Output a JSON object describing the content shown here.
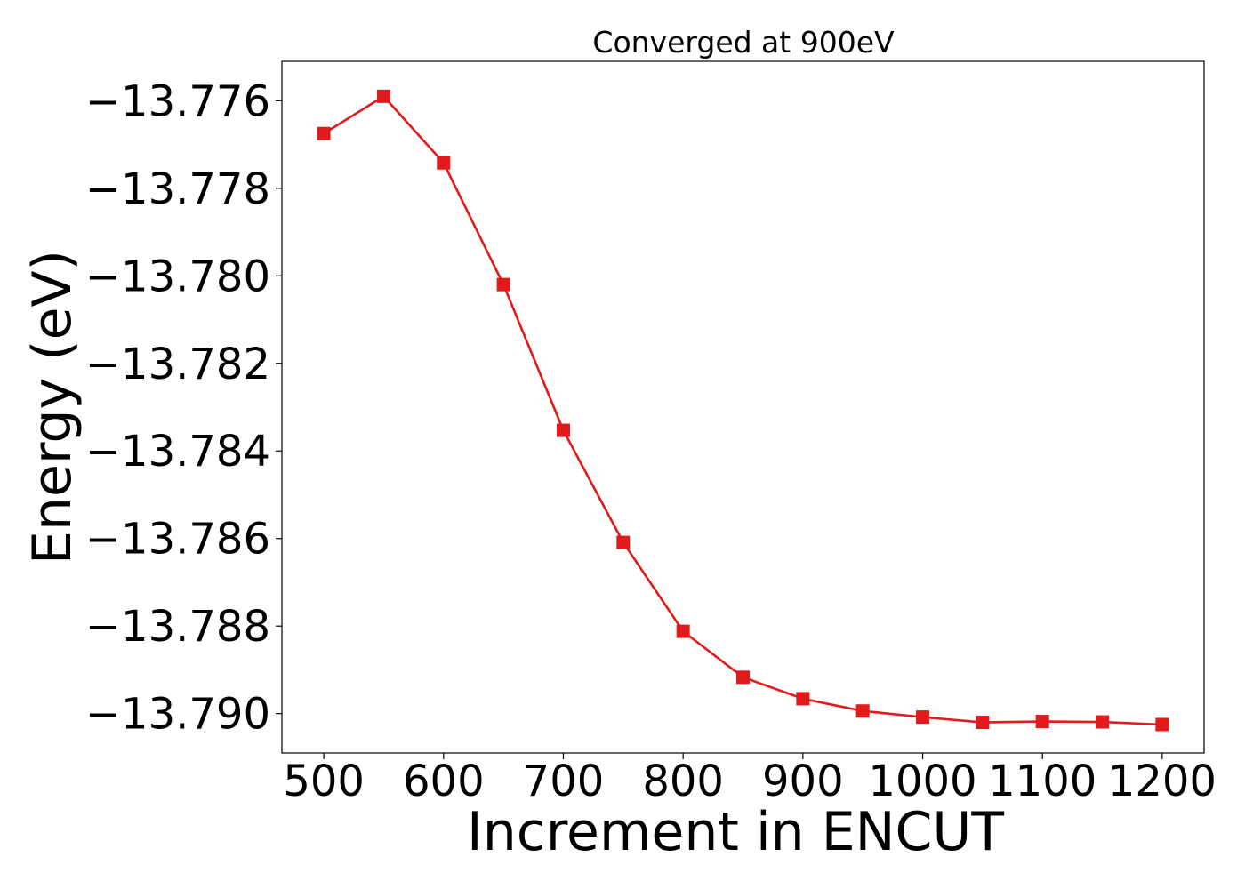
{
  "chart_data": {
    "type": "line",
    "title": "Converged at 900eV",
    "xlabel": "Increment in ENCUT",
    "ylabel": "Energy (eV)",
    "xlim": [
      465,
      1235
    ],
    "ylim": [
      -13.7909,
      -13.7751
    ],
    "xticks": [
      500,
      600,
      700,
      800,
      900,
      1000,
      1100,
      1200
    ],
    "yticks": [
      -13.79,
      -13.788,
      -13.786,
      -13.784,
      -13.782,
      -13.78,
      -13.778,
      -13.776
    ],
    "xtick_labels": [
      "500",
      "600",
      "700",
      "800",
      "900",
      "1000",
      "1100",
      "1200"
    ],
    "ytick_labels": [
      "−13.790",
      "−13.788",
      "−13.786",
      "−13.784",
      "−13.782",
      "−13.780",
      "−13.778",
      "−13.776"
    ],
    "grid": false,
    "series": [
      {
        "color": "#e31a1c",
        "marker": "square",
        "x": [
          500,
          550,
          600,
          650,
          700,
          750,
          800,
          850,
          900,
          950,
          1000,
          1050,
          1100,
          1150,
          1200
        ],
        "y": [
          -13.77675,
          -13.7759,
          -13.77742,
          -13.7802,
          -13.78353,
          -13.78609,
          -13.78812,
          -13.78917,
          -13.78966,
          -13.78994,
          -13.79008,
          -13.7902,
          -13.79018,
          -13.79019,
          -13.79025
        ]
      }
    ]
  }
}
